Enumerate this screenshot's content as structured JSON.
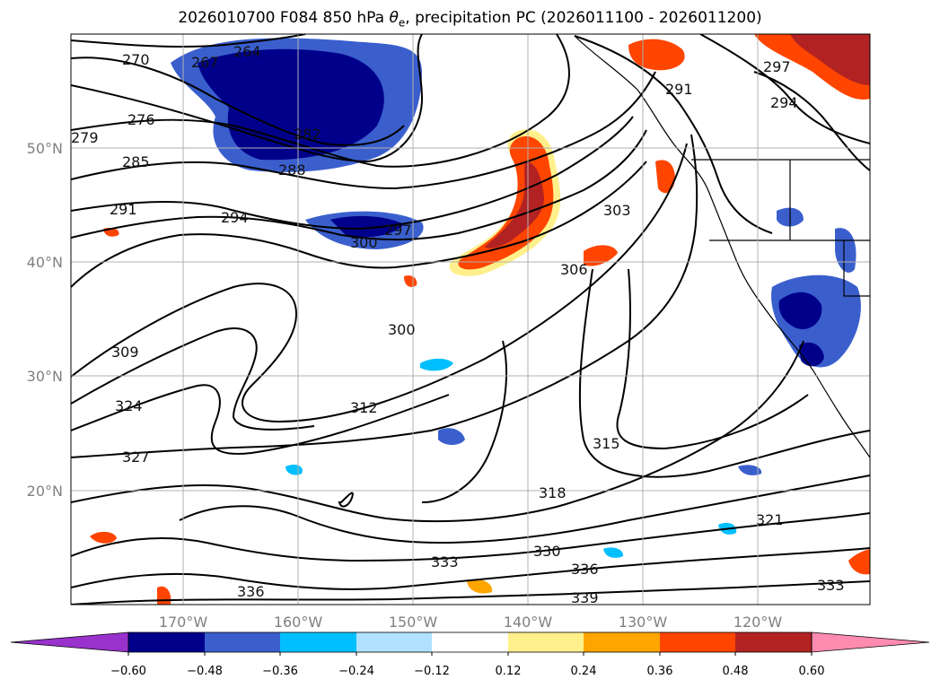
{
  "title": "2026010700 F084 850 hPa θe, precipitation PC (2026011100 - 2026011200)",
  "title_parts": {
    "before": "2026010700 F084 850 hPa ",
    "theta": "θ",
    "sub": "e",
    "after": ", precipitation PC (2026011100 - 2026011200)"
  },
  "map": {
    "lon_labels": [
      "170°W",
      "160°W",
      "150°W",
      "140°W",
      "130°W",
      "120°W"
    ],
    "lat_labels": [
      "50°N",
      "40°N",
      "30°N",
      "20°N"
    ],
    "contour_labels": [
      "264",
      "267",
      "270",
      "276",
      "279",
      "282",
      "285",
      "288",
      "291",
      "294",
      "297",
      "300",
      "303",
      "306",
      "309",
      "312",
      "315",
      "318",
      "321",
      "324",
      "327",
      "330",
      "333",
      "336",
      "339",
      "291",
      "294",
      "297",
      "300",
      "333",
      "336"
    ],
    "colors": {
      "ocean": "#ffffff",
      "grid": "#b0b0b0",
      "contour": "#000000"
    }
  },
  "colorbar": {
    "tick_labels": [
      "−0.60",
      "−0.48",
      "−0.36",
      "−0.24",
      "−0.12",
      "0.12",
      "0.24",
      "0.36",
      "0.48",
      "0.60"
    ],
    "colors": [
      "#9932cc",
      "#00008b",
      "#3a5fcd",
      "#00bfff",
      "#b0e2ff",
      "#ffffff",
      "#fff08c",
      "#ffa500",
      "#ff4500",
      "#b22222",
      "#ff8cb0"
    ]
  }
}
